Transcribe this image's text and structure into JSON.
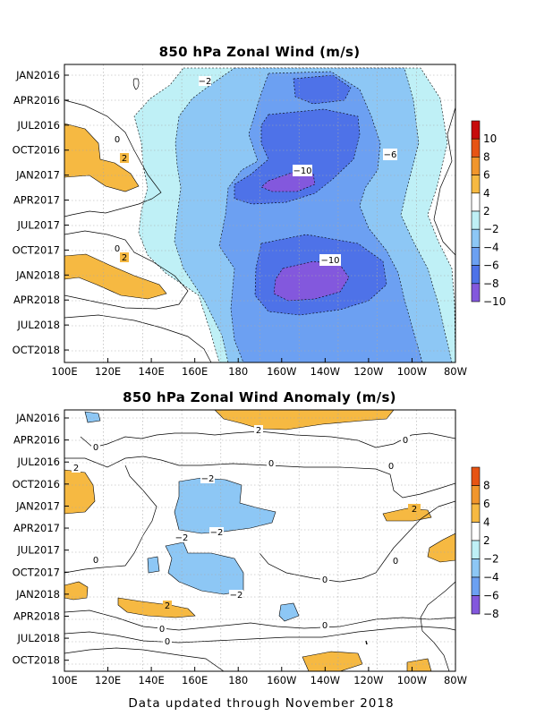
{
  "colors": {
    "pos_scale": [
      "#ffffff",
      "#f6b942",
      "#f1962c",
      "#e65414",
      "#c70b0b"
    ],
    "neg_scale": [
      "#ffffff",
      "#bff0f6",
      "#8dc7f5",
      "#6ca0f2",
      "#4e72e8",
      "#8358dd"
    ]
  },
  "chart_data": [
    {
      "type": "heatmap",
      "title": "850 hPa Zonal Wind (m/s)",
      "xlabel": "",
      "ylabel": "",
      "x_ticks": [
        "100E",
        "120E",
        "140E",
        "160E",
        "180",
        "160W",
        "140W",
        "120W",
        "100W",
        "80W"
      ],
      "x_range": [
        "100E",
        "80W"
      ],
      "y_ticks": [
        "JAN2016",
        "APR2016",
        "JUL2016",
        "OCT2016",
        "JAN2017",
        "APR2017",
        "JUL2017",
        "OCT2017",
        "JAN2018",
        "APR2018",
        "JUL2018",
        "OCT2018"
      ],
      "y_range": [
        "JAN2016",
        "NOV2018"
      ],
      "grid": true,
      "colorbar": {
        "labels": [
          "10",
          "8",
          "6",
          "4",
          "2",
          "−2",
          "−4",
          "−6",
          "−8",
          "−10"
        ],
        "colors": [
          "#c70b0b",
          "#e65414",
          "#f1962c",
          "#f6b942",
          "#ffffff",
          "#bff0f6",
          "#8dc7f5",
          "#6ca0f2",
          "#4e72e8",
          "#8358dd"
        ]
      },
      "contour_labels": [
        "0",
        "2",
        "−2",
        "−6",
        "−10",
        "0",
        "2",
        "−10"
      ],
      "features": [
        {
          "level": -10,
          "center_lon": "152W",
          "center_time": "JAN2017"
        },
        {
          "level": -10,
          "center_lon": "152W",
          "center_time": "MAR2018"
        },
        {
          "level": 2,
          "center_lon": "108E",
          "center_time": "NOV2016"
        },
        {
          "level": 2,
          "center_lon": "110E",
          "center_time": "FEB2018"
        }
      ]
    },
    {
      "type": "heatmap",
      "title": "850 hPa Zonal Wind Anomaly (m/s)",
      "xlabel": "",
      "ylabel": "",
      "x_ticks": [
        "100E",
        "120E",
        "140E",
        "160E",
        "180",
        "160W",
        "140W",
        "120W",
        "100W",
        "80W"
      ],
      "x_range": [
        "100E",
        "80W"
      ],
      "y_ticks": [
        "JAN2016",
        "APR2016",
        "JUL2016",
        "OCT2016",
        "JAN2017",
        "APR2017",
        "JUL2017",
        "OCT2017",
        "JAN2018",
        "APR2018",
        "JUL2018",
        "OCT2018"
      ],
      "y_range": [
        "JAN2016",
        "NOV2018"
      ],
      "grid": true,
      "colorbar": {
        "labels": [
          "8",
          "6",
          "4",
          "2",
          "−2",
          "−4",
          "−6",
          "−8"
        ],
        "colors": [
          "#e65414",
          "#f1962c",
          "#f6b942",
          "#ffffff",
          "#bff0f6",
          "#8dc7f5",
          "#6ca0f2",
          "#8358dd"
        ]
      },
      "contour_labels": [
        "2",
        "0",
        "2",
        "0",
        "−2",
        "2",
        "−2",
        "−2",
        "−2",
        "0",
        "0",
        "2",
        "0",
        "0",
        "0"
      ],
      "features": [
        {
          "level": 2,
          "center_lon": "170W",
          "center_time": "JAN2016"
        },
        {
          "level": -2,
          "center_lon": "165E",
          "center_time": "DEC2016"
        },
        {
          "level": -2,
          "center_lon": "170E",
          "center_time": "OCT2017"
        },
        {
          "level": 2,
          "center_lon": "130E",
          "center_time": "FEB2018"
        }
      ]
    }
  ],
  "footer": "Data updated through November 2018"
}
